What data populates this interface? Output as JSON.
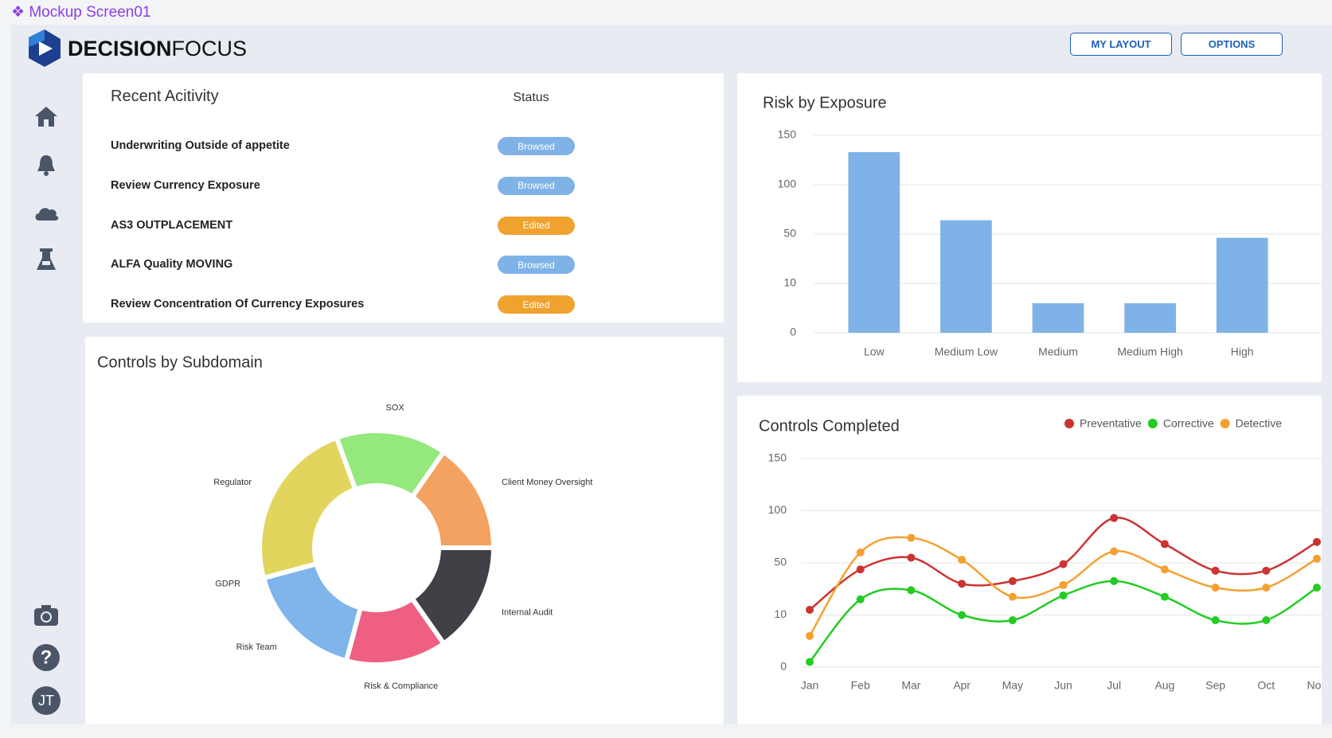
{
  "header": {
    "app_title": "Mockup Screen01",
    "brand_bold": "DECISION",
    "brand_light": "FOCUS",
    "buttons": [
      "MY LAYOUT",
      "OPTIONS"
    ]
  },
  "user": {
    "initials": "JT"
  },
  "activity": {
    "title": "Recent Acitivity",
    "status_header": "Status",
    "status_colors": {
      "Browsed": "#7fb3e8",
      "Edited": "#f0a22e"
    },
    "rows": [
      {
        "name": "Underwriting Outside of appetite",
        "status": "Browsed"
      },
      {
        "name": "Review Currency Exposure",
        "status": "Browsed"
      },
      {
        "name": "AS3 OUTPLACEMENT",
        "status": "Edited"
      },
      {
        "name": "ALFA Quality MOVING",
        "status": "Browsed"
      },
      {
        "name": "Review Concentration Of Currency Exposures",
        "status": "Edited"
      }
    ]
  },
  "chart_data": [
    {
      "type": "bar",
      "title": "Risk by Exposure",
      "categories": [
        "Low",
        "Medium Low",
        "Medium",
        "Medium High",
        "High"
      ],
      "values": [
        133,
        64,
        6,
        6,
        47
      ],
      "color": "#7fb3e8",
      "ylim": [
        0,
        150
      ],
      "yticks": [
        0,
        10,
        50,
        100,
        150
      ],
      "yscale": "tick-spaced",
      "grid": true
    },
    {
      "type": "donut",
      "title": "Controls by Subdomain",
      "categories": [
        "SOX",
        "Client Money Oversight",
        "Internal Audit",
        "Risk & Compliance",
        "Risk Team",
        "GDPR",
        "Regulator"
      ],
      "values": [
        55,
        55,
        55,
        50,
        60,
        0,
        85
      ],
      "colors": [
        "#94e87c",
        "#f4a261",
        "#404047",
        "#ef5f82",
        "#7fb5ea",
        "#9b8ee8",
        "#e2d55e"
      ]
    },
    {
      "type": "line",
      "title": "Controls Completed",
      "categories": [
        "Jan",
        "Feb",
        "Mar",
        "Apr",
        "May",
        "Jun",
        "Jul",
        "Aug",
        "Sep",
        "Oct",
        "Nov"
      ],
      "series": [
        {
          "name": "Preventative",
          "color": "#cc3333",
          "values": [
            14,
            45,
            55,
            34,
            36,
            49,
            93,
            68,
            44,
            44,
            70
          ]
        },
        {
          "name": "Corrective",
          "color": "#22cc22",
          "values": [
            1,
            22,
            29,
            10,
            9,
            25,
            36,
            24,
            9,
            9,
            31
          ]
        },
        {
          "name": "Detective",
          "color": "#f5a030",
          "values": [
            6,
            60,
            74,
            53,
            24,
            33,
            61,
            45,
            31,
            31,
            54
          ]
        }
      ],
      "ylim": [
        0,
        150
      ],
      "yticks": [
        0,
        10,
        50,
        100,
        150
      ],
      "yscale": "tick-spaced",
      "grid": true,
      "legend": "top-right",
      "smooth": true
    }
  ]
}
